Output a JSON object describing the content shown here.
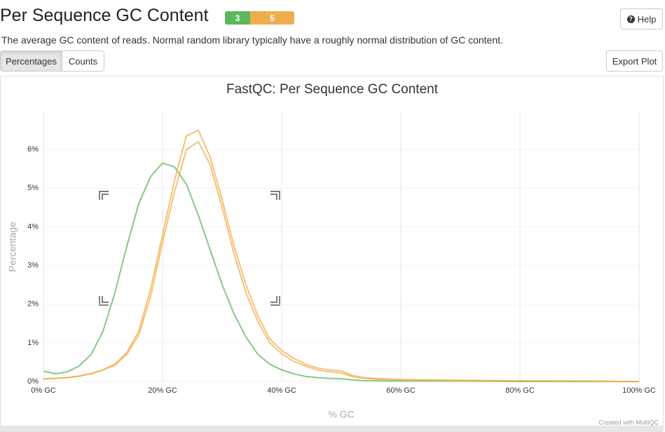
{
  "header": {
    "title": "Per Sequence GC Content",
    "badges": [
      "3",
      "5"
    ],
    "help": "Help",
    "description": "The average GC content of reads. Normal random library typically have a roughly normal distribution of GC content.",
    "buttons": [
      "Percentages",
      "Counts"
    ],
    "export": "Export Plot"
  },
  "chart_data": {
    "type": "line",
    "title": "FastQC: Per Sequence GC Content",
    "x_label": "% GC",
    "y_label": "Percentage",
    "credit": "Created with MultiQC",
    "x": [
      0,
      2,
      4,
      6,
      8,
      10,
      12,
      14,
      16,
      18,
      20,
      22,
      24,
      26,
      28,
      30,
      32,
      34,
      36,
      38,
      40,
      42,
      44,
      46,
      48,
      50,
      52,
      54,
      56,
      58,
      60,
      70,
      80,
      90,
      100
    ],
    "series": [
      {
        "color": "#5cb85c",
        "values": [
          0.27,
          0.2,
          0.25,
          0.4,
          0.7,
          1.3,
          2.3,
          3.5,
          4.6,
          5.3,
          5.65,
          5.55,
          5.1,
          4.3,
          3.4,
          2.5,
          1.75,
          1.15,
          0.7,
          0.45,
          0.3,
          0.2,
          0.13,
          0.1,
          0.08,
          0.07,
          0.04,
          0.02,
          0.02,
          0.01,
          0.01,
          0.01,
          0,
          0,
          0
        ]
      },
      {
        "color": "#f0ad4e",
        "values": [
          0.07,
          0.08,
          0.1,
          0.14,
          0.2,
          0.3,
          0.45,
          0.75,
          1.3,
          2.4,
          3.8,
          5.2,
          6.35,
          6.5,
          5.8,
          4.7,
          3.5,
          2.5,
          1.7,
          1.1,
          0.8,
          0.6,
          0.45,
          0.35,
          0.3,
          0.27,
          0.15,
          0.1,
          0.08,
          0.06,
          0.05,
          0.03,
          0.02,
          0.01,
          0
        ]
      },
      {
        "color": "#f0ad4e",
        "values": [
          0.07,
          0.08,
          0.1,
          0.14,
          0.2,
          0.3,
          0.42,
          0.7,
          1.2,
          2.2,
          3.6,
          4.9,
          6.0,
          6.2,
          5.6,
          4.5,
          3.3,
          2.3,
          1.55,
          1.0,
          0.72,
          0.52,
          0.4,
          0.3,
          0.25,
          0.22,
          0.12,
          0.08,
          0.06,
          0.05,
          0.04,
          0.02,
          0.01,
          0.01,
          0
        ]
      }
    ],
    "xlim": [
      0,
      100
    ],
    "xticks": [
      {
        "value": 0,
        "label": "0% GC"
      },
      {
        "value": 20,
        "label": "20% GC"
      },
      {
        "value": 40,
        "label": "40% GC"
      },
      {
        "value": 60,
        "label": "60% GC"
      },
      {
        "value": 80,
        "label": "80% GC"
      },
      {
        "value": 100,
        "label": "100% GC"
      }
    ],
    "ylim": [
      0,
      7
    ],
    "yticks": [
      {
        "value": 0,
        "label": "0%"
      },
      {
        "value": 1,
        "label": "1%"
      },
      {
        "value": 2,
        "label": "2%"
      },
      {
        "value": 3,
        "label": "3%"
      },
      {
        "value": 4,
        "label": "4%"
      },
      {
        "value": 5,
        "label": "5%"
      },
      {
        "value": 6,
        "label": "6%"
      }
    ],
    "grid": true
  }
}
